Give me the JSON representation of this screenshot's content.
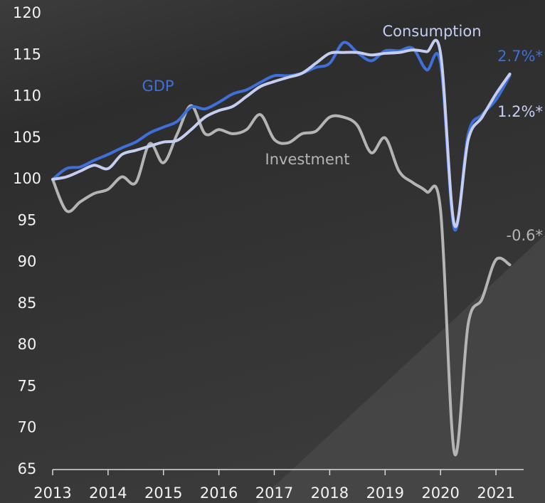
{
  "chart_data": {
    "type": "line",
    "x": [
      2013,
      2013.25,
      2013.5,
      2013.75,
      2014,
      2014.25,
      2014.5,
      2014.75,
      2015,
      2015.25,
      2015.5,
      2015.75,
      2016,
      2016.25,
      2016.5,
      2016.75,
      2017,
      2017.25,
      2017.5,
      2017.75,
      2018,
      2018.25,
      2018.5,
      2018.75,
      2019,
      2019.25,
      2019.5,
      2019.75,
      2020,
      2020.25,
      2020.5,
      2020.75,
      2021,
      2021.25
    ],
    "series": [
      {
        "name": "GDP",
        "color": "#3f6fd8",
        "values": [
          100,
          101.3,
          101.5,
          102.3,
          103,
          103.8,
          104.5,
          105.6,
          106.3,
          107,
          108.7,
          108.5,
          109.3,
          110.3,
          110.8,
          111.7,
          112.5,
          112.5,
          112.8,
          113.5,
          114,
          116.5,
          115.3,
          114.3,
          115.5,
          115.5,
          115.8,
          113.2,
          114,
          94,
          105.5,
          107.8,
          109.6,
          112.5
        ]
      },
      {
        "name": "Consumption",
        "color": "#c5cdf0",
        "values": [
          100,
          100.3,
          101,
          101.7,
          101.3,
          103,
          103.5,
          104,
          104.5,
          104.7,
          106,
          107.5,
          108.3,
          108.8,
          110,
          111.2,
          111.8,
          112.3,
          112.8,
          114,
          115.2,
          115.3,
          115.3,
          115,
          115.2,
          115.3,
          115.6,
          115.4,
          115.2,
          94.5,
          104.8,
          107.5,
          110.3,
          112.7
        ]
      },
      {
        "name": "Investment",
        "color": "#b4b4b4",
        "values": [
          100,
          96.2,
          97.3,
          98.3,
          98.8,
          100.3,
          99.6,
          104.3,
          102,
          105.5,
          108.9,
          105.5,
          106,
          105.5,
          106,
          107.8,
          104.8,
          104.4,
          105.5,
          105.8,
          107.5,
          107.5,
          106.5,
          103.2,
          105,
          101,
          99.6,
          98.5,
          96.3,
          67,
          82.6,
          85.6,
          90.3,
          89.7
        ]
      }
    ],
    "annotations": [
      "2.7%*",
      "1.2%*",
      "-0.6*"
    ],
    "xlim": [
      2013,
      2021.5
    ],
    "xticks": [
      2013,
      2014,
      2015,
      2016,
      2017,
      2018,
      2019,
      2020,
      2021
    ],
    "ylim": [
      65,
      120
    ],
    "yticks": [
      65,
      70,
      75,
      80,
      85,
      90,
      95,
      100,
      105,
      110,
      115,
      120
    ],
    "grid": false
  }
}
